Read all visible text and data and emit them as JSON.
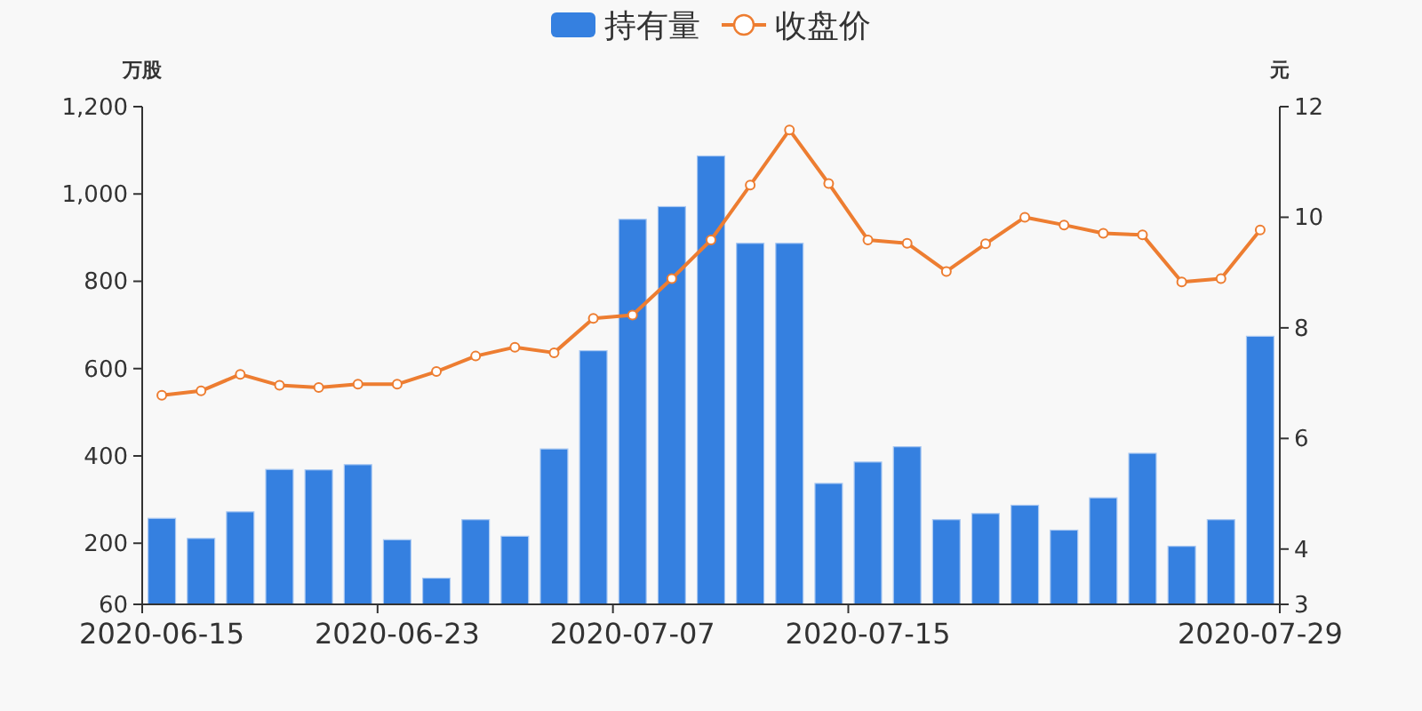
{
  "chart_data": {
    "type": "bar",
    "ylabel": "万股",
    "y2label": "元",
    "legend": "top",
    "categories": [
      "2020-06-15",
      null,
      null,
      null,
      null,
      null,
      "2020-06-23",
      null,
      null,
      null,
      null,
      null,
      "2020-07-07",
      null,
      null,
      null,
      null,
      null,
      "2020-07-15",
      null,
      null,
      null,
      null,
      null,
      null,
      null,
      null,
      null,
      "2020-07-29"
    ],
    "ylim": [
      60,
      1200
    ],
    "yticks": [
      60,
      200,
      400,
      600,
      800,
      {
        "value": 1000,
        "label": "1,000"
      },
      {
        "value": 1200,
        "label": "1,200"
      }
    ],
    "y2lim": [
      3,
      12
    ],
    "y2ticks": [
      3,
      4,
      6,
      8,
      10,
      12
    ],
    "series": [
      {
        "name": "持有量",
        "color": "#3580e0",
        "values": [
          257,
          211,
          272,
          369,
          368,
          380,
          208,
          120,
          254,
          216,
          416,
          641,
          942,
          971,
          1087,
          887,
          887,
          337,
          386,
          421,
          254,
          268,
          287,
          230,
          304,
          406,
          193,
          254,
          674
        ]
      },
      {
        "name": "收盘价",
        "type": "line",
        "axis": "y2",
        "color": "#ed7d31",
        "marker": "circle",
        "values": [
          6.78,
          6.86,
          7.16,
          6.96,
          6.92,
          6.98,
          6.98,
          7.21,
          7.49,
          7.65,
          7.55,
          8.17,
          8.23,
          8.89,
          9.59,
          10.58,
          11.58,
          10.61,
          9.59,
          9.53,
          9.02,
          9.52,
          10.0,
          9.86,
          9.71,
          9.68,
          8.83,
          8.89,
          9.77
        ]
      }
    ]
  }
}
